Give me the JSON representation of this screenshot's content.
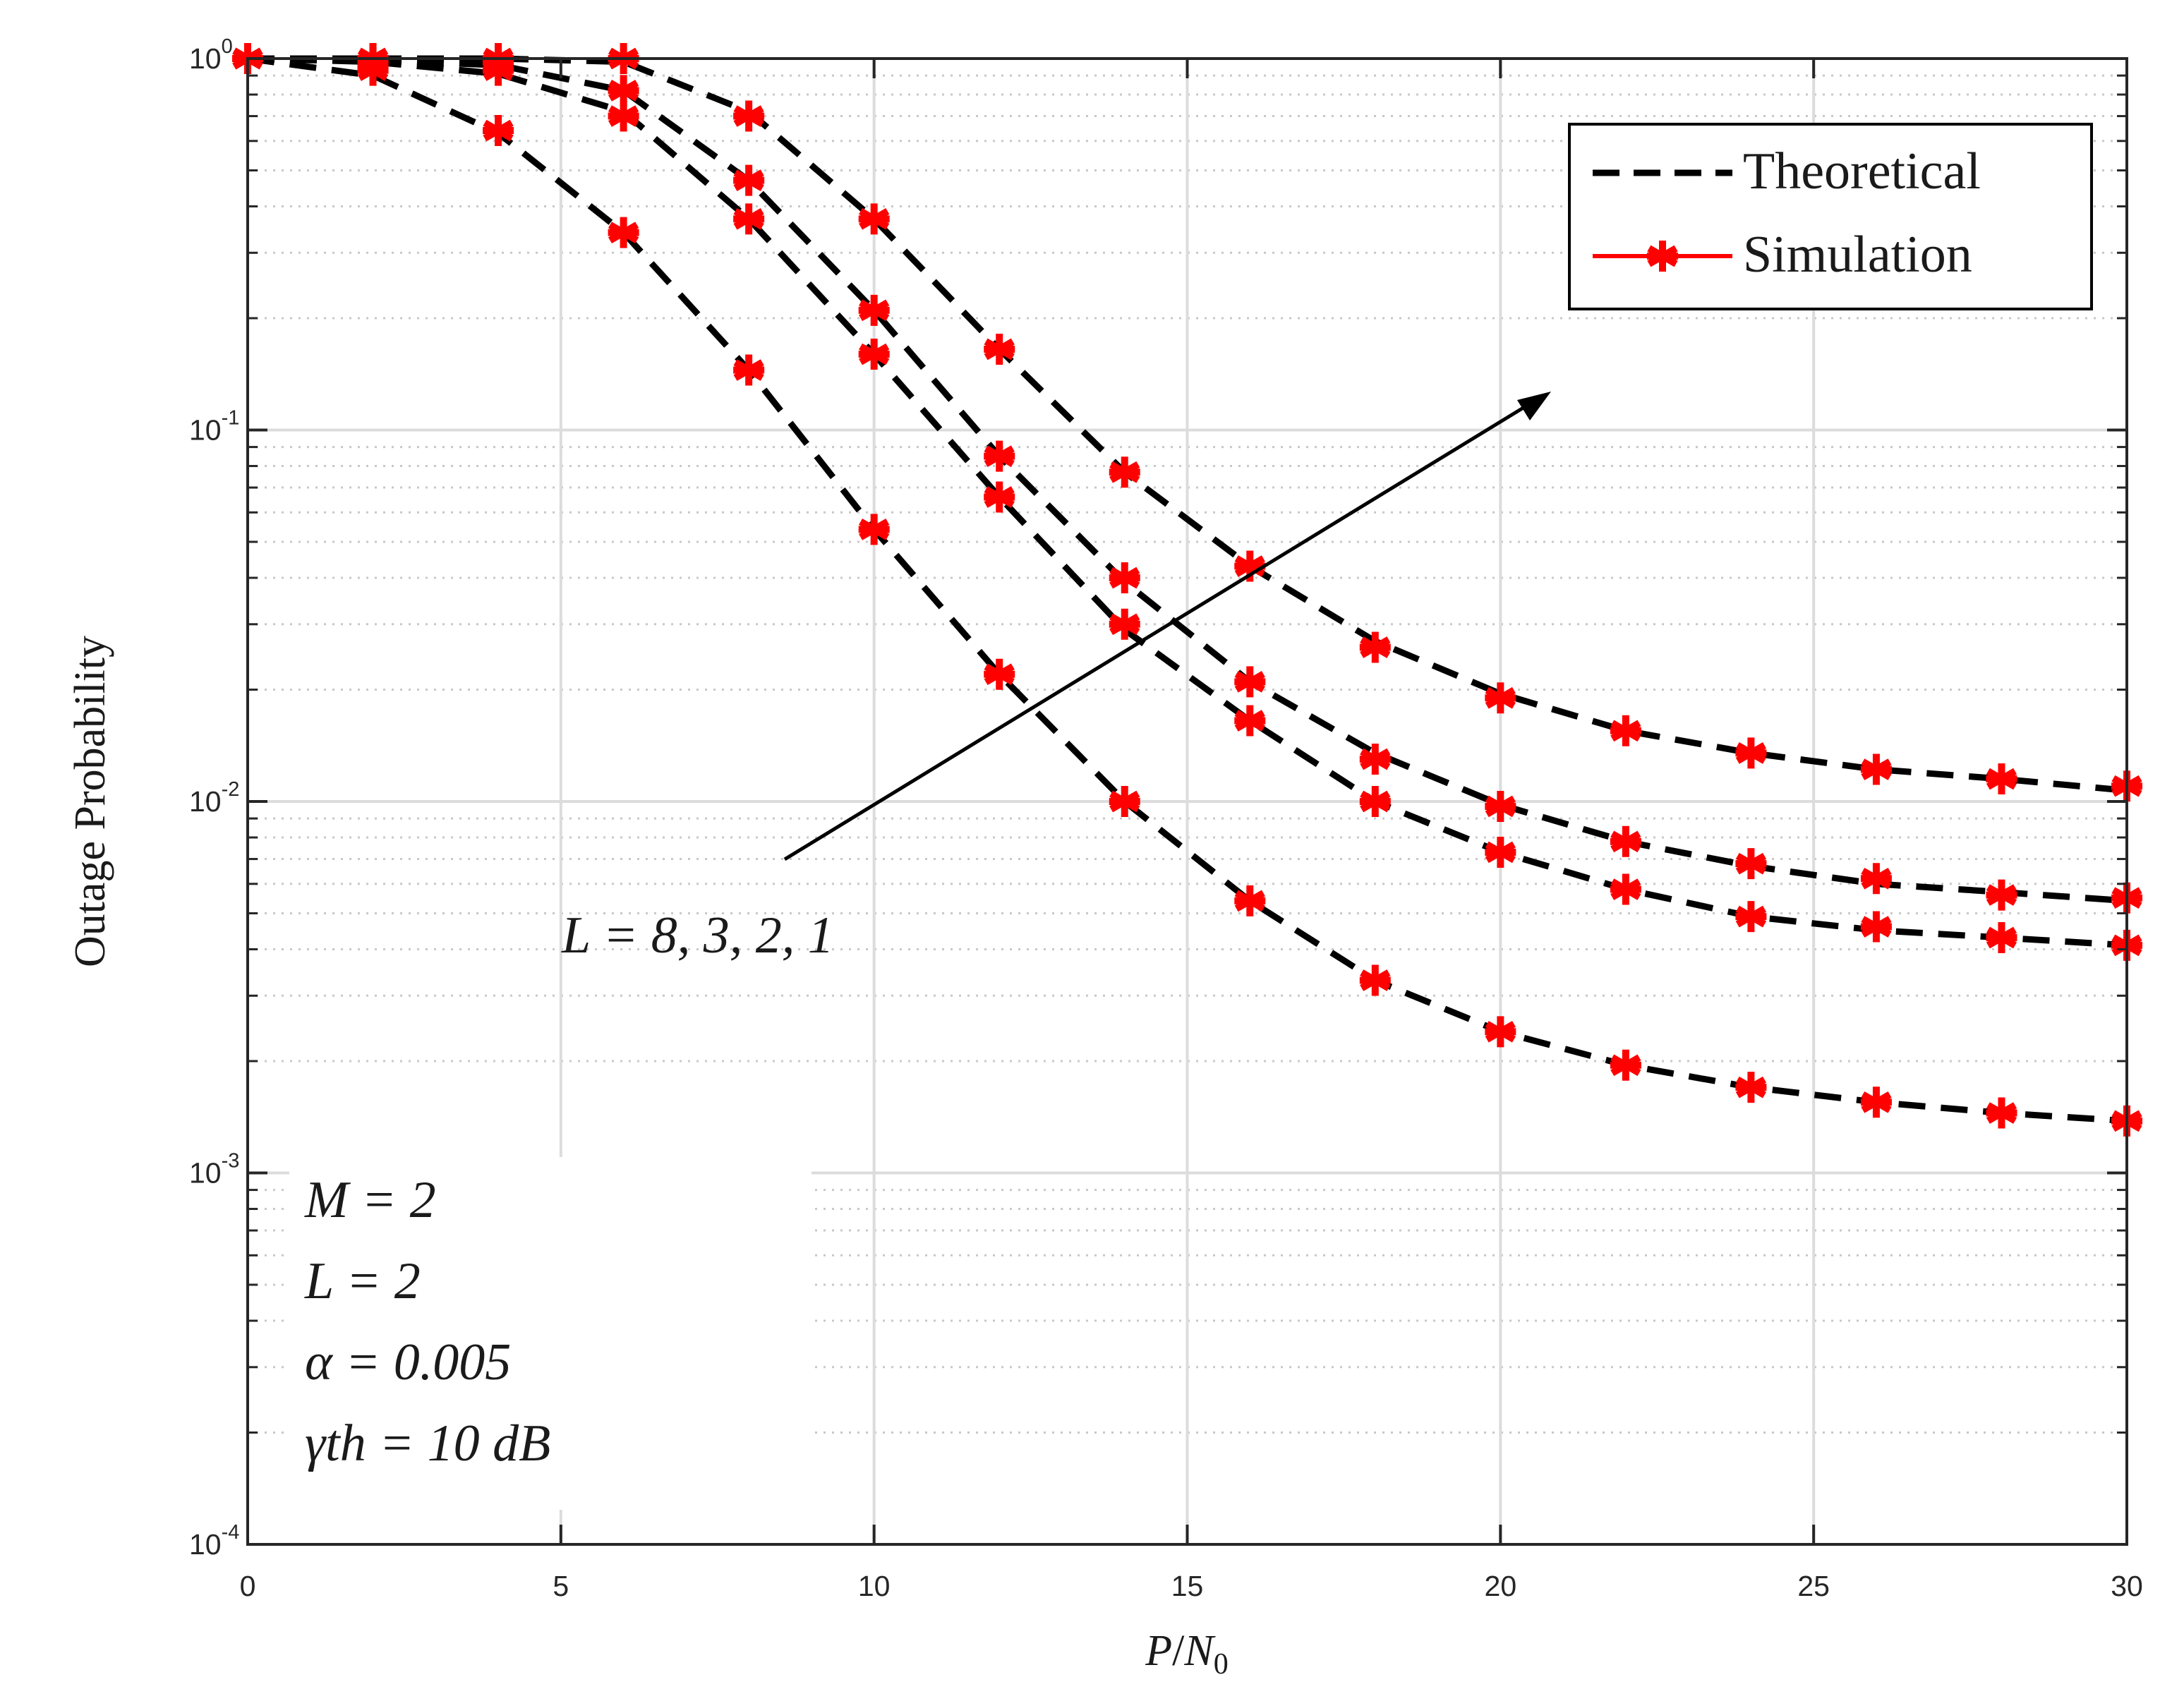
{
  "chart_data": {
    "type": "line",
    "yscale": "log",
    "xlim": [
      0,
      30
    ],
    "ylim": [
      0.0001,
      1
    ],
    "xlabel": "P/N0",
    "ylabel": "Outage Probability",
    "x_ticks": [
      "0",
      "5",
      "10",
      "15",
      "20",
      "25",
      "30"
    ],
    "y_ticks": [
      {
        "base": "10",
        "exp": "-4"
      },
      {
        "base": "10",
        "exp": "-3"
      },
      {
        "base": "10",
        "exp": "-2"
      },
      {
        "base": "10",
        "exp": "-1"
      },
      {
        "base": "10",
        "exp": "0"
      }
    ],
    "grid": true,
    "legend_position": "top-right",
    "legend": {
      "theoretical": "Theoretical",
      "simulation": "Simulation"
    },
    "arrow_label": "L = 8, 3, 2, 1",
    "annotations": [
      "M = 2",
      "L = 2",
      "α = 0.005",
      "γth = 10 dB"
    ],
    "x": [
      0,
      2,
      4,
      6,
      8,
      10,
      12,
      14,
      16,
      18,
      20,
      22,
      24,
      26,
      28,
      30
    ],
    "series": [
      {
        "name": "L = 8",
        "theory": [
          1.0,
          1.0,
          1.0,
          0.98,
          0.72,
          0.37,
          0.165,
          0.077,
          0.043,
          0.027,
          0.0195,
          0.0155,
          0.0135,
          0.0122,
          0.0115,
          0.0107
        ],
        "sim": [
          1.0,
          1.0,
          1.0,
          1.0,
          0.7,
          0.37,
          0.165,
          0.077,
          0.043,
          0.026,
          0.019,
          0.0155,
          0.0135,
          0.0122,
          0.0115,
          0.011
        ]
      },
      {
        "name": "L = 3",
        "theory": [
          1.0,
          0.99,
          0.96,
          0.82,
          0.47,
          0.21,
          0.085,
          0.039,
          0.021,
          0.0135,
          0.0098,
          0.0078,
          0.0067,
          0.006,
          0.0057,
          0.0054
        ],
        "sim": [
          1.0,
          1.0,
          0.98,
          0.82,
          0.47,
          0.21,
          0.085,
          0.04,
          0.021,
          0.013,
          0.0097,
          0.0078,
          0.0068,
          0.0062,
          0.0056,
          0.0055
        ]
      },
      {
        "name": "L = 2",
        "theory": [
          1.0,
          0.98,
          0.91,
          0.72,
          0.37,
          0.16,
          0.066,
          0.029,
          0.0165,
          0.01,
          0.0073,
          0.0058,
          0.0049,
          0.0045,
          0.0043,
          0.0041
        ],
        "sim": [
          1.0,
          0.97,
          0.93,
          0.7,
          0.37,
          0.16,
          0.066,
          0.03,
          0.0165,
          0.01,
          0.0073,
          0.0058,
          0.0049,
          0.0046,
          0.0043,
          0.0041
        ]
      },
      {
        "name": "L = 1",
        "theory": [
          1.0,
          0.9,
          0.63,
          0.34,
          0.145,
          0.054,
          0.022,
          0.01,
          0.0054,
          0.0033,
          0.0024,
          0.00195,
          0.0017,
          0.00155,
          0.00145,
          0.00138
        ],
        "sim": [
          1.0,
          0.93,
          0.64,
          0.34,
          0.145,
          0.054,
          0.022,
          0.01,
          0.0054,
          0.0033,
          0.0024,
          0.00195,
          0.0017,
          0.00155,
          0.00145,
          0.00138
        ]
      }
    ],
    "colors": {
      "theory": "#000000",
      "sim": "#ff0000",
      "grid": "#dcdcdc",
      "axis": "#262626"
    }
  }
}
